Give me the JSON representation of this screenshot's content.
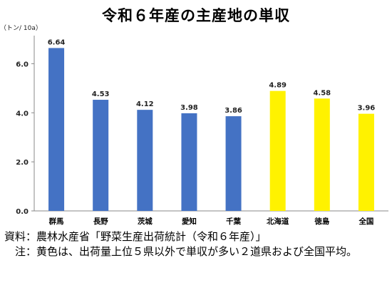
{
  "chart_data": {
    "type": "bar",
    "title": "令和６年産の主産地の単収",
    "unit_label": "（トン/ 10a）",
    "categories": [
      "群馬",
      "長野",
      "茨城",
      "愛知",
      "千葉",
      "北海道",
      "徳島",
      "全国"
    ],
    "values": [
      6.64,
      4.53,
      4.12,
      3.98,
      3.86,
      4.89,
      4.58,
      3.96
    ],
    "value_labels": [
      "6.64",
      "4.53",
      "4.12",
      "3.98",
      "3.86",
      "4.89",
      "4.58",
      "3.96"
    ],
    "bar_colors": [
      "#4472C4",
      "#4472C4",
      "#4472C4",
      "#4472C4",
      "#4472C4",
      "#FFF200",
      "#FFF200",
      "#FFF200"
    ],
    "ylim": [
      0,
      7
    ],
    "yticks": [
      0,
      2,
      4,
      6
    ],
    "ytick_labels": [
      "0.0",
      "2.0",
      "4.0",
      "6.0"
    ],
    "grid": false,
    "legend": "none"
  },
  "notes": {
    "source_head": "資料：",
    "source_text": "農林水産省「野菜生産出荷統計（令和６年産）」",
    "note_head": "　注：",
    "note_text": "黄色は、出荷量上位５県以外で単収が多い２道県および全国平均。"
  }
}
